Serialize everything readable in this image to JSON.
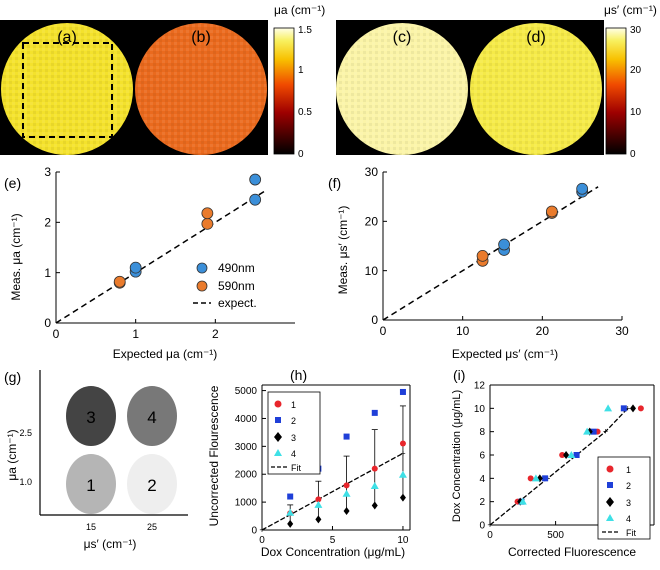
{
  "colorbars": {
    "mua": {
      "label": "μa (cm⁻¹)",
      "ticks": [
        "1.5",
        "1",
        "0.5",
        "0"
      ]
    },
    "mus": {
      "label": "μs′ (cm⁻¹)",
      "ticks": [
        "30",
        "20",
        "10",
        "0"
      ]
    }
  },
  "maps": {
    "a": {
      "label": "(a)",
      "color": "#f4e22c"
    },
    "b": {
      "label": "(b)",
      "color": "#ea6a1e"
    },
    "c": {
      "label": "(c)",
      "color": "#fbf4a8"
    },
    "d": {
      "label": "(d)",
      "color": "#f5ea48"
    }
  },
  "colors": {
    "blue": "#3b8fd9",
    "orange": "#ea7b2c",
    "red": "#e8262c",
    "navy": "#1f3fd8",
    "cyan": "#3ee0e6"
  },
  "chart_data": [
    {
      "panel": "(e)",
      "type": "scatter",
      "xlabel": "Expected μa (cm⁻¹)",
      "ylabel": "Meas. μa (cm⁻¹)",
      "xlim": [
        0,
        3
      ],
      "ylim": [
        0,
        3
      ],
      "xticks": [
        "0",
        "1",
        "2"
      ],
      "yticks": [
        "0",
        "1",
        "2",
        "3"
      ],
      "series": [
        {
          "name": "490nm",
          "x": [
            1.0,
            1.0,
            2.5,
            2.5
          ],
          "y": [
            1.02,
            1.1,
            2.45,
            2.85
          ]
        },
        {
          "name": "590nm",
          "x": [
            0.8,
            0.8,
            1.9,
            1.9
          ],
          "y": [
            0.8,
            0.82,
            1.97,
            2.18
          ]
        }
      ],
      "fit_label": "expect.",
      "legend": "bottom-right"
    },
    {
      "panel": "(f)",
      "type": "scatter",
      "xlabel": "Expected μs′ (cm⁻¹)",
      "ylabel": "Meas. μs′ (cm⁻¹)",
      "xlim": [
        0,
        30
      ],
      "ylim": [
        0,
        30
      ],
      "xticks": [
        "0",
        "10",
        "20",
        "30"
      ],
      "yticks": [
        "0",
        "10",
        "20",
        "30"
      ],
      "series": [
        {
          "name": "490nm",
          "x": [
            15.2,
            15.2,
            25,
            25
          ],
          "y": [
            14.2,
            15.3,
            26.0,
            26.6
          ]
        },
        {
          "name": "590nm",
          "x": [
            12.5,
            12.5,
            21.2,
            21.2
          ],
          "y": [
            12.0,
            13.0,
            21.7,
            22.0
          ]
        }
      ]
    },
    {
      "panel": "(g)",
      "type": "diagram",
      "ylabel": "μa (cm⁻¹)",
      "xlabel": "μs′ (cm⁻¹)",
      "xticks": [
        "15",
        "25"
      ],
      "yticks": [
        "1.0",
        "2.5"
      ],
      "phantoms": [
        {
          "id": "1",
          "color": "#b5b5b5"
        },
        {
          "id": "2",
          "color": "#eeeeee"
        },
        {
          "id": "3",
          "color": "#444444"
        },
        {
          "id": "4",
          "color": "#787878"
        }
      ]
    },
    {
      "panel": "(h)",
      "type": "scatter",
      "xlabel": "Dox Concentration (μg/mL)",
      "ylabel": "Uncorrected Flourescence",
      "xlim": [
        0,
        10.5
      ],
      "ylim": [
        0,
        5200
      ],
      "xticks": [
        "0",
        "5",
        "10"
      ],
      "yticks": [
        "0",
        "1000",
        "2000",
        "3000",
        "4000",
        "5000"
      ],
      "x": [
        0,
        2,
        4,
        6,
        8,
        10
      ],
      "series": [
        {
          "name": "1",
          "values": [
            0,
            600,
            1100,
            1600,
            2200,
            3100
          ]
        },
        {
          "name": "2",
          "values": [
            0,
            1200,
            2200,
            3350,
            4200,
            4950
          ]
        },
        {
          "name": "3",
          "values": [
            0,
            220,
            380,
            680,
            880,
            1160
          ]
        },
        {
          "name": "4",
          "values": [
            0,
            620,
            900,
            1300,
            1580,
            1980
          ]
        }
      ],
      "fit": {
        "name": "Fit",
        "values": [
          0,
          550,
          1100,
          1650,
          2200,
          2750
        ],
        "err": [
          0,
          350,
          650,
          1000,
          1400,
          1700
        ]
      },
      "legend": "top-left"
    },
    {
      "panel": "(i)",
      "type": "scatter",
      "xlabel": "Corrected Fluorescence",
      "ylabel": "Dox Concentration (μg/mL)",
      "xlim": [
        0,
        1250
      ],
      "ylim": [
        0,
        12
      ],
      "xticks": [
        "0",
        "500",
        "1000"
      ],
      "yticks": [
        "0",
        "2",
        "4",
        "6",
        "8",
        "10",
        "12"
      ],
      "series": [
        {
          "name": "1",
          "x": [
            0,
            210,
            310,
            550,
            820,
            1150
          ],
          "y": [
            0,
            2,
            4,
            6,
            8,
            10
          ]
        },
        {
          "name": "2",
          "x": [
            0,
            240,
            420,
            660,
            790,
            1020
          ],
          "y": [
            0,
            2,
            4,
            6,
            8,
            10
          ]
        },
        {
          "name": "3",
          "x": [
            0,
            230,
            380,
            580,
            760,
            1090
          ],
          "y": [
            0,
            2,
            4,
            6,
            8,
            10
          ]
        },
        {
          "name": "4",
          "x": [
            0,
            250,
            350,
            620,
            740,
            900
          ],
          "y": [
            0,
            2,
            4,
            6,
            8,
            10
          ]
        }
      ],
      "fit": {
        "name": "Fit",
        "x": [
          0,
          220,
          440,
          660,
          880,
          1050
        ],
        "y": [
          0,
          2,
          4,
          6,
          8,
          10
        ]
      },
      "legend": "bottom-right"
    }
  ]
}
